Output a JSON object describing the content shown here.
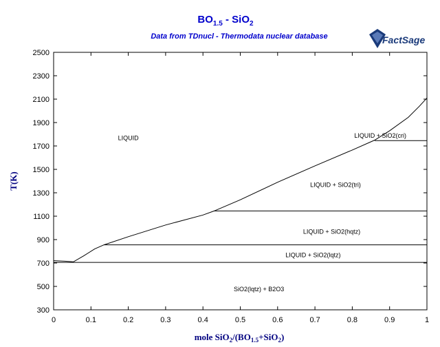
{
  "chart_data": {
    "type": "line",
    "title_main": "BO",
    "title_sub1": "1.5",
    "title_mid": " - SiO",
    "title_sub2": "2",
    "subtitle": "Data from TDnucl - Thermodata nuclear database",
    "logo_text": "FactSage",
    "xlabel_parts": [
      "mole SiO",
      "2",
      "/(BO",
      "1.5",
      "+SiO",
      "2",
      ")"
    ],
    "ylabel": "T(K)",
    "xlim": [
      0,
      1
    ],
    "ylim": [
      300,
      2500
    ],
    "x_ticks": [
      0,
      0.1,
      0.2,
      0.3,
      0.4,
      0.5,
      0.6,
      0.7,
      0.8,
      0.9,
      1
    ],
    "y_ticks": [
      300,
      500,
      700,
      900,
      1100,
      1300,
      1500,
      1700,
      1900,
      2100,
      2300,
      2500
    ],
    "x_tick_labels": [
      "0",
      "0.1",
      "0.2",
      "0.3",
      "0.4",
      "0.5",
      "0.6",
      "0.7",
      "0.8",
      "0.9",
      "1"
    ],
    "y_tick_labels": [
      "300",
      "500",
      "700",
      "900",
      "1100",
      "1300",
      "1500",
      "1700",
      "1900",
      "2100",
      "2300",
      "2500"
    ],
    "colors": {
      "title": "#0000cc",
      "axis_title": "#000080",
      "line": "#000000",
      "logo": "#1a3a7a"
    },
    "series": [
      {
        "id": "liquidus",
        "points": [
          [
            0,
            720
          ],
          [
            0.03,
            715
          ],
          [
            0.053,
            710
          ],
          [
            0.08,
            760
          ],
          [
            0.11,
            820
          ],
          [
            0.135,
            855
          ],
          [
            0.2,
            925
          ],
          [
            0.3,
            1025
          ],
          [
            0.4,
            1110
          ],
          [
            0.43,
            1145
          ],
          [
            0.5,
            1240
          ],
          [
            0.6,
            1390
          ],
          [
            0.7,
            1530
          ],
          [
            0.8,
            1665
          ],
          [
            0.86,
            1750
          ],
          [
            0.9,
            1830
          ],
          [
            0.95,
            1945
          ],
          [
            0.98,
            2040
          ],
          [
            1.0,
            2110
          ]
        ]
      },
      {
        "id": "eutectic",
        "points": [
          [
            0,
            705
          ],
          [
            1,
            705
          ]
        ]
      },
      {
        "id": "qtz-tridymite-transition",
        "points": [
          [
            0.135,
            855
          ],
          [
            1,
            855
          ]
        ]
      },
      {
        "id": "hqtz-tridymite-line",
        "points": [
          [
            0.43,
            1145
          ],
          [
            1,
            1145
          ]
        ]
      },
      {
        "id": "tridymite-cristobalite-line",
        "points": [
          [
            0.86,
            1745
          ],
          [
            1,
            1745
          ]
        ]
      }
    ],
    "region_labels": [
      {
        "text": "LIQUID",
        "x": 0.2,
        "y": 1750
      },
      {
        "text": "LIQUID + SiO2(cri)",
        "x": 0.875,
        "y": 1770
      },
      {
        "text": "LIQUID + SiO2(tri)",
        "x": 0.755,
        "y": 1350
      },
      {
        "text": "LIQUID + SiO2(hqtz)",
        "x": 0.745,
        "y": 950
      },
      {
        "text": "LIQUID + SiO2(lqtz)",
        "x": 0.695,
        "y": 750
      },
      {
        "text": "SiO2(lqtz) + B2O3",
        "x": 0.55,
        "y": 460
      }
    ]
  }
}
